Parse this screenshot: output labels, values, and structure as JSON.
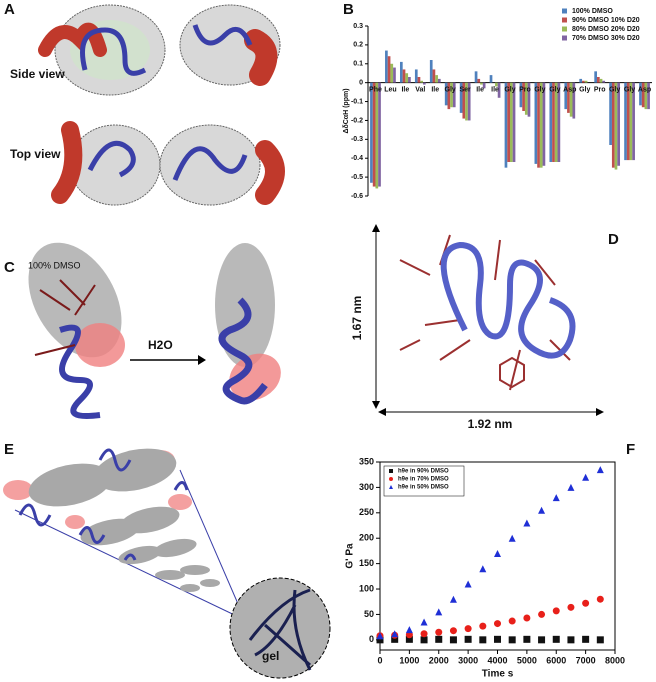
{
  "panels": {
    "labels": [
      "A",
      "B",
      "C",
      "D",
      "E",
      "F"
    ],
    "side_view": "Side view",
    "top_view": "Top view",
    "c_condition": "100% DMSO",
    "c_arrow": "H2O",
    "d_height": "1.67 nm",
    "d_width": "1.92 nm",
    "e_gel": "gel"
  },
  "chart_data": [
    {
      "type": "bar",
      "ylabel": "ΔδCαH (ppm)",
      "categories": [
        "Phe",
        "Leu",
        "Ile",
        "Val",
        "Ile",
        "Gly",
        "Ser",
        "Ile",
        "Ile",
        "Gly",
        "Pro",
        "Gly",
        "Gly",
        "Asp",
        "Gly",
        "Pro",
        "Gly",
        "Gly",
        "Asp"
      ],
      "series": [
        {
          "name": "100% DMSO",
          "color": "#4f81bd",
          "values": [
            -0.53,
            0.17,
            0.11,
            0.07,
            0.12,
            -0.12,
            -0.16,
            0.06,
            0.04,
            -0.45,
            -0.13,
            -0.43,
            -0.42,
            -0.14,
            0.02,
            0.06,
            -0.33,
            -0.41,
            -0.12
          ]
        },
        {
          "name": "90% DMSO 10% D20",
          "color": "#c0504d",
          "values": [
            -0.55,
            0.14,
            0.07,
            0.03,
            0.07,
            -0.14,
            -0.19,
            0.02,
            0.0,
            -0.42,
            -0.15,
            -0.45,
            -0.42,
            -0.16,
            0.01,
            0.03,
            -0.45,
            -0.41,
            -0.13
          ]
        },
        {
          "name": "80% DMSO 20% D20",
          "color": "#9bbb59",
          "values": [
            -0.56,
            0.1,
            0.05,
            0.01,
            0.04,
            -0.13,
            -0.2,
            -0.01,
            -0.02,
            -0.42,
            -0.17,
            -0.45,
            -0.42,
            -0.18,
            0.01,
            0.02,
            -0.46,
            -0.41,
            -0.14
          ]
        },
        {
          "name": "70% DMSO 30% D20",
          "color": "#8064a2",
          "values": [
            -0.55,
            0.08,
            0.03,
            -0.01,
            0.02,
            -0.13,
            -0.2,
            -0.03,
            -0.08,
            -0.42,
            -0.18,
            -0.44,
            -0.42,
            -0.19,
            0.0,
            0.01,
            -0.44,
            -0.41,
            -0.14
          ]
        }
      ],
      "ylim": [
        -0.6,
        0.3
      ],
      "yticks": [
        -0.6,
        -0.5,
        -0.4,
        -0.3,
        -0.2,
        -0.1,
        0,
        0.1,
        0.2,
        0.3
      ],
      "grid": false,
      "legend": "upper right"
    },
    {
      "type": "scatter",
      "xlabel": "Time s",
      "ylabel": "G' Pa",
      "series": [
        {
          "name": "h9e in 90% DMSO",
          "color": "#111111",
          "marker": "square",
          "x": [
            0,
            500,
            1000,
            1500,
            2000,
            2500,
            3000,
            3500,
            4000,
            4500,
            5000,
            5500,
            6000,
            6500,
            7000,
            7500
          ],
          "values": [
            0,
            1,
            1,
            0,
            1,
            0,
            1,
            0,
            1,
            0,
            1,
            0,
            1,
            0,
            1,
            0
          ]
        },
        {
          "name": "h9e in 70% DMSO",
          "color": "#e8201a",
          "marker": "circle",
          "x": [
            0,
            500,
            1000,
            1500,
            2000,
            2500,
            3000,
            3500,
            4000,
            4500,
            5000,
            5500,
            6000,
            6500,
            7000,
            7500
          ],
          "values": [
            8,
            9,
            10,
            12,
            15,
            18,
            22,
            27,
            32,
            37,
            43,
            50,
            57,
            64,
            72,
            80
          ]
        },
        {
          "name": "h9e in 50% DMSO",
          "color": "#1f2fd6",
          "marker": "triangle",
          "x": [
            0,
            500,
            1000,
            1500,
            2000,
            2500,
            3000,
            3500,
            4000,
            4500,
            5000,
            5500,
            6000,
            6500,
            7000,
            7500
          ],
          "values": [
            8,
            12,
            20,
            35,
            55,
            80,
            110,
            140,
            170,
            200,
            230,
            255,
            280,
            300,
            320,
            335
          ]
        }
      ],
      "xlim": [
        0,
        8000
      ],
      "xticks": [
        0,
        1000,
        2000,
        3000,
        4000,
        5000,
        6000,
        7000,
        8000
      ],
      "ylim": [
        -20,
        350
      ],
      "yticks": [
        0,
        50,
        100,
        150,
        200,
        250,
        300,
        350
      ],
      "grid": false,
      "legend": "upper left"
    }
  ]
}
